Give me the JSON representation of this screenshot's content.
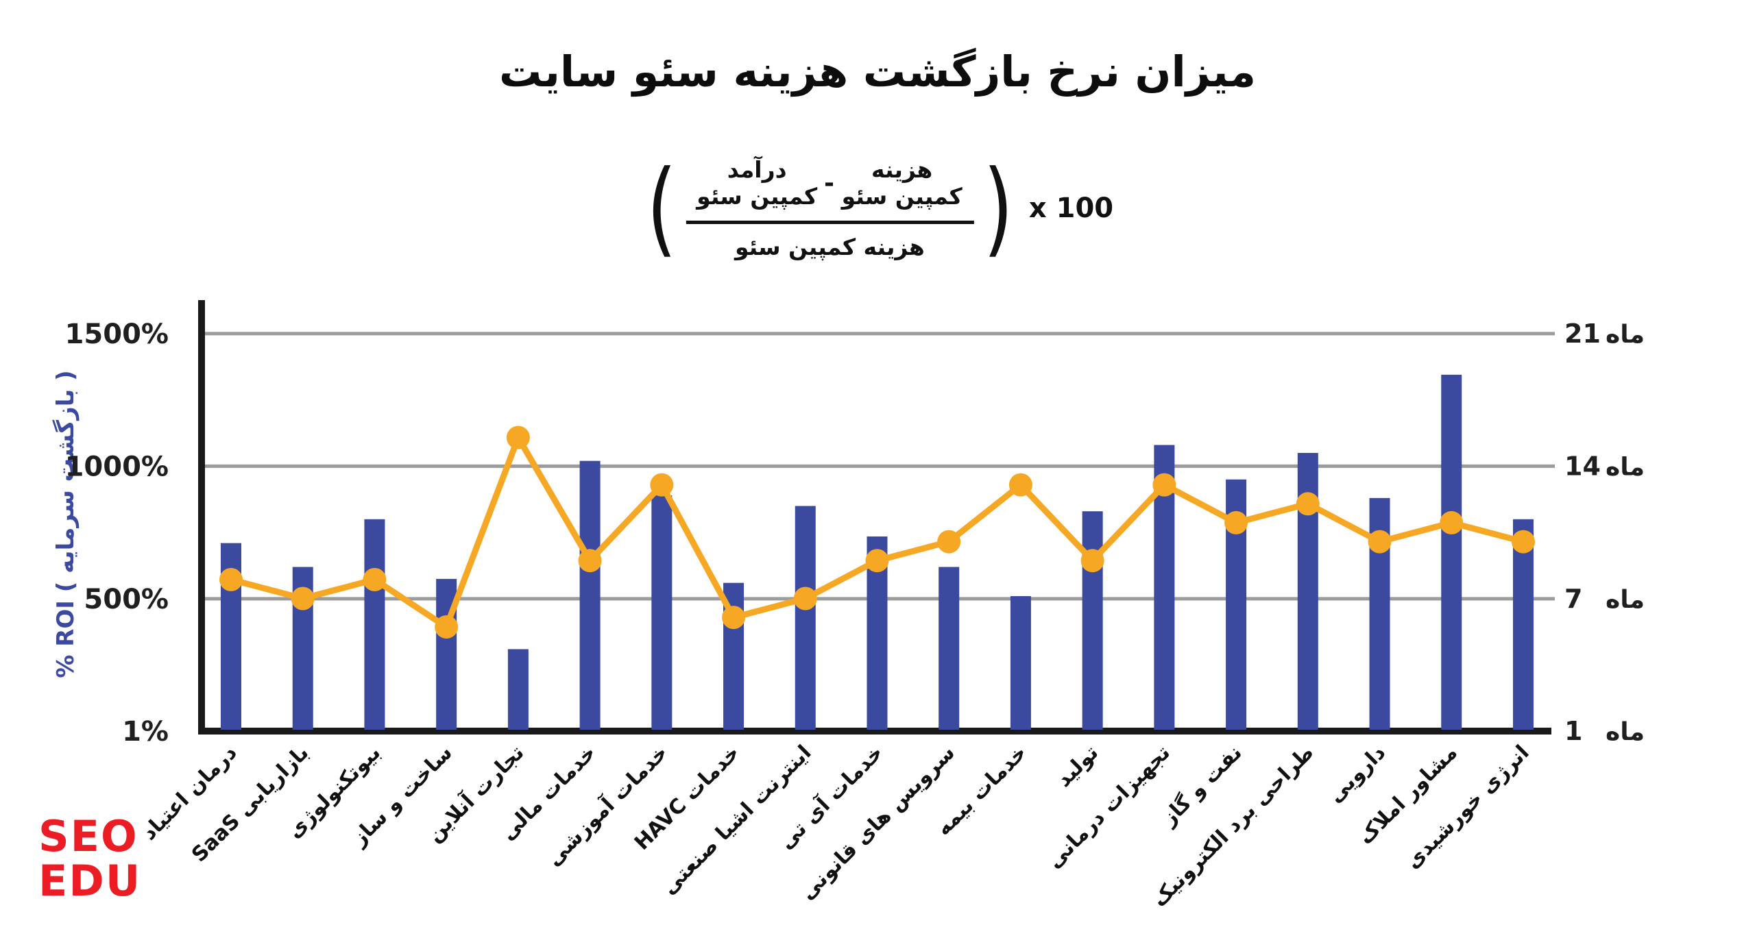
{
  "formula": {
    "open_paren": "(",
    "numerator_left": "درآمد کمپین سئو",
    "minus": "-",
    "numerator_right": "هزینه کمپین سئو",
    "denominator": "هزینه کمپین سئو",
    "close_paren": ")",
    "multiplier": "x 100"
  },
  "logo": {
    "line1": "SEO",
    "line2": "EDU",
    "color": "#EC1C24"
  },
  "colors": {
    "bar": "#3B4A9F",
    "line": "#F6A724",
    "grid": "#9C9C9C",
    "axis": "#1A1A1A",
    "axis_title": "#3B4AA0",
    "tick_text": "#1f1f1f",
    "logo_red": "#EC1C24"
  },
  "chart_data": {
    "type": "bar+line",
    "title": "میزان نرخ بازگشت هزینه سئو سایت",
    "categories": [
      "درمان اعتیاد",
      "بازاریابی SaaS",
      "بیوتکنولوژی",
      "ساخت و ساز",
      "تجارت آنلاین",
      "خدمات مالی",
      "خدمات آموزشی",
      "خدمات HAVC",
      "اینترنت اشیا صنعتی",
      "خدمات آی تی",
      "سرویس های قانونی",
      "خدمات بیمه",
      "تولید",
      "تجهیزات درمانی",
      "نفت و گاز",
      "طراحی برد الکترونیک",
      "دارویی",
      "مشاور املاک",
      "انرژی خورشیدی"
    ],
    "series": [
      {
        "name": "ROI %",
        "type": "bar",
        "y_axis": "left",
        "values": [
          710,
          620,
          800,
          575,
          310,
          1020,
          890,
          560,
          850,
          735,
          620,
          510,
          830,
          1080,
          950,
          1050,
          880,
          1345,
          800
        ]
      },
      {
        "name": "ماه",
        "type": "line",
        "y_axis": "right",
        "values": [
          9,
          8,
          9,
          6.5,
          16.5,
          10,
          14,
          7,
          8,
          10,
          11,
          14,
          10,
          14,
          12,
          13,
          11,
          12,
          11
        ]
      }
    ],
    "left_axis": {
      "label": "% ROI ( بازگشت سرمایه )",
      "ticks": [
        "1%",
        "500%",
        "1000%",
        "1500%"
      ],
      "range": [
        1,
        1550
      ]
    },
    "right_axis": {
      "unit": "ماه",
      "ticks": [
        "1",
        "7",
        "14",
        "21"
      ],
      "range": [
        1,
        22
      ]
    },
    "grid": true,
    "legend": false
  }
}
